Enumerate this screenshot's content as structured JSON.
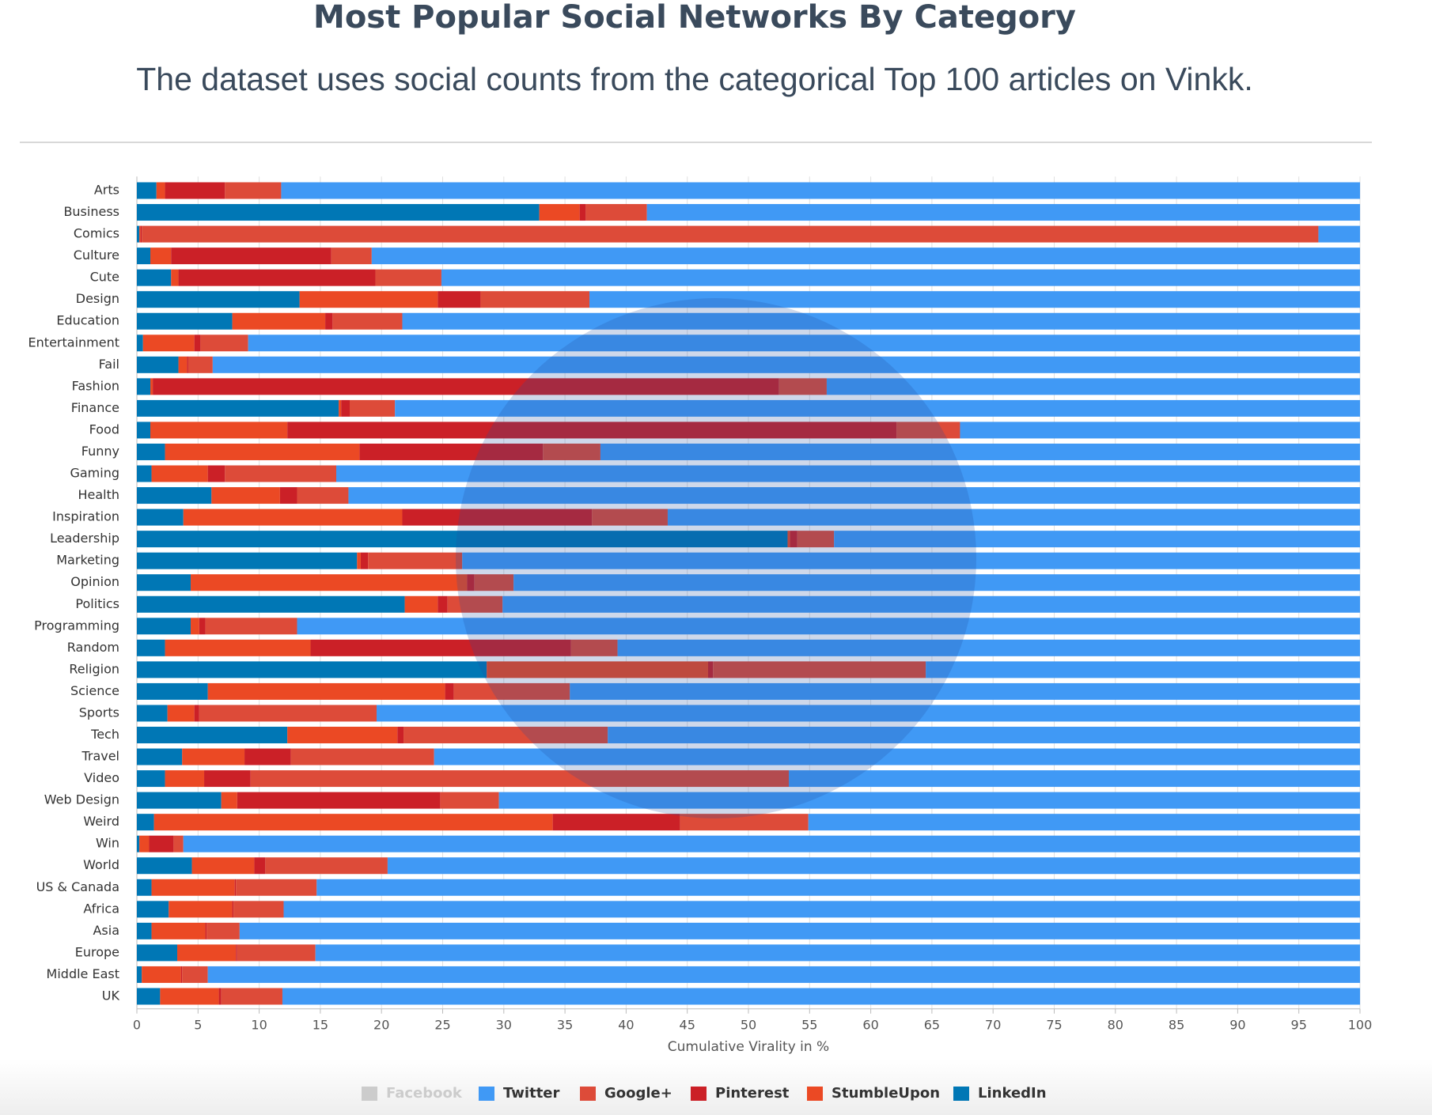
{
  "chart_data": {
    "type": "stacked_bar_horizontal",
    "title": "Most Popular Social Networks By Category",
    "subtitle": "The dataset uses social counts from the categorical Top 100 articles on Vinkk.",
    "x_label": "Cumulative Virality in %",
    "categories": [
      "Arts",
      "Business",
      "Comics",
      "Culture",
      "Cute",
      "Design",
      "Education",
      "Entertainment",
      "Fail",
      "Fashion",
      "Finance",
      "Food",
      "Funny",
      "Gaming",
      "Health",
      "Inspiration",
      "Leadership",
      "Marketing",
      "Opinion",
      "Politics",
      "Programming",
      "Random",
      "Religion",
      "Science",
      "Sports",
      "Tech",
      "Travel",
      "Video",
      "Web Design",
      "Weird",
      "Win",
      "World",
      "US & Canada",
      "Africa",
      "Asia",
      "Europe",
      "Middle East",
      "UK"
    ],
    "series": [
      {
        "name": "Facebook",
        "color": "#3b5998",
        "hidden": true
      },
      {
        "name": "Twitter",
        "color": "#4099f5",
        "values": [
          88.2,
          58.3,
          3.4,
          80.8,
          75.1,
          63.0,
          78.3,
          90.9,
          93.8,
          43.6,
          78.9,
          32.7,
          62.1,
          83.7,
          82.7,
          56.6,
          43.0,
          73.4,
          69.2,
          70.1,
          86.9,
          60.7,
          35.5,
          64.6,
          80.4,
          61.5,
          75.7,
          46.7,
          70.4,
          45.1,
          96.2,
          79.5,
          85.3,
          88.0,
          91.6,
          85.4,
          94.2,
          88.1
        ]
      },
      {
        "name": "Google+",
        "color": "#dd4b39",
        "values": [
          4.6,
          5.0,
          96.2,
          3.3,
          5.4,
          8.9,
          5.7,
          3.9,
          2.0,
          3.9,
          3.7,
          5.2,
          4.7,
          9.1,
          4.2,
          6.2,
          3.0,
          7.7,
          3.2,
          4.5,
          7.5,
          3.8,
          17.4,
          9.5,
          14.5,
          16.7,
          11.7,
          44.0,
          4.8,
          10.5,
          0.8,
          10.0,
          6.6,
          4.1,
          2.7,
          6.4,
          2.1,
          5.0
        ]
      },
      {
        "name": "Pinterest",
        "color": "#cb2027",
        "values": [
          4.9,
          0.5,
          0.1,
          13.1,
          16.1,
          3.5,
          0.6,
          0.5,
          0.1,
          51.2,
          0.7,
          49.8,
          15.0,
          1.4,
          1.4,
          15.5,
          0.6,
          0.6,
          0.6,
          0.8,
          0.5,
          21.3,
          0.4,
          0.7,
          0.4,
          0.5,
          3.8,
          3.8,
          16.6,
          10.4,
          2.0,
          0.9,
          0.1,
          0.1,
          0.1,
          0.1,
          0.1,
          0.2
        ]
      },
      {
        "name": "StumbleUpon",
        "color": "#eb4924",
        "values": [
          0.7,
          3.3,
          0.1,
          1.7,
          0.6,
          11.3,
          7.6,
          4.2,
          0.7,
          0.2,
          0.2,
          11.2,
          15.9,
          4.6,
          5.6,
          17.9,
          0.2,
          0.3,
          22.6,
          2.7,
          0.7,
          11.9,
          18.1,
          19.4,
          2.2,
          9.0,
          5.1,
          3.2,
          1.3,
          32.6,
          0.8,
          5.1,
          6.8,
          5.2,
          4.4,
          4.8,
          3.2,
          4.8
        ]
      },
      {
        "name": "LinkedIn",
        "color": "#0077b5",
        "values": [
          1.6,
          32.9,
          0.2,
          1.1,
          2.8,
          13.3,
          7.8,
          0.5,
          3.4,
          1.1,
          16.5,
          1.1,
          2.3,
          1.2,
          6.1,
          3.8,
          53.2,
          18.0,
          4.4,
          21.9,
          4.4,
          2.3,
          28.6,
          5.8,
          2.5,
          12.3,
          3.7,
          2.3,
          6.9,
          1.4,
          0.2,
          4.5,
          1.2,
          2.6,
          1.2,
          3.3,
          0.4,
          1.9
        ]
      }
    ],
    "xlim": [
      0,
      100
    ],
    "xticks": [
      0,
      5,
      10,
      15,
      20,
      25,
      30,
      35,
      40,
      45,
      50,
      55,
      60,
      65,
      70,
      75,
      80,
      85,
      90,
      95,
      100
    ],
    "grid": true,
    "legend": "bottom"
  }
}
